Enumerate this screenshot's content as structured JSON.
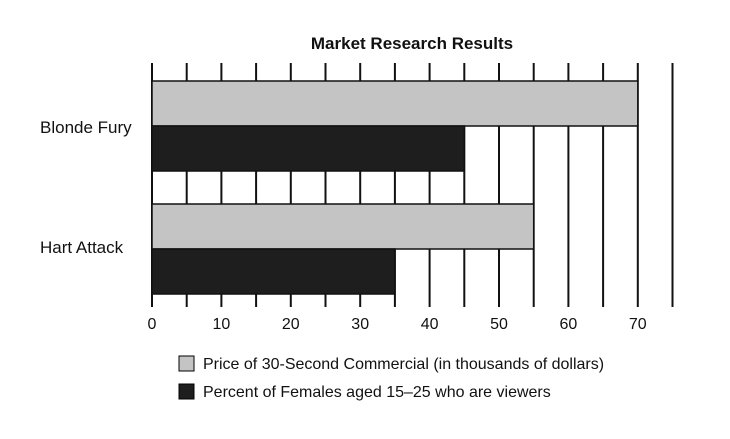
{
  "chart_data": {
    "type": "bar",
    "orientation": "horizontal",
    "title": "Market Research Results",
    "categories": [
      "Blonde Fury",
      "Hart Attack"
    ],
    "series": [
      {
        "name": "Price of 30-Second Commercial (in thousands of dollars)",
        "values": [
          70,
          55
        ],
        "color": "#c4c4c4"
      },
      {
        "name": "Percent of Females aged 15–25 who are viewers",
        "values": [
          45,
          35
        ],
        "color": "#1e1e1e"
      }
    ],
    "xlim": [
      0,
      75
    ],
    "xticks": [
      "0",
      "10",
      "20",
      "30",
      "40",
      "50",
      "60",
      "70"
    ],
    "minor_gridline_step": 5,
    "grid": true,
    "legend_position": "bottom"
  }
}
